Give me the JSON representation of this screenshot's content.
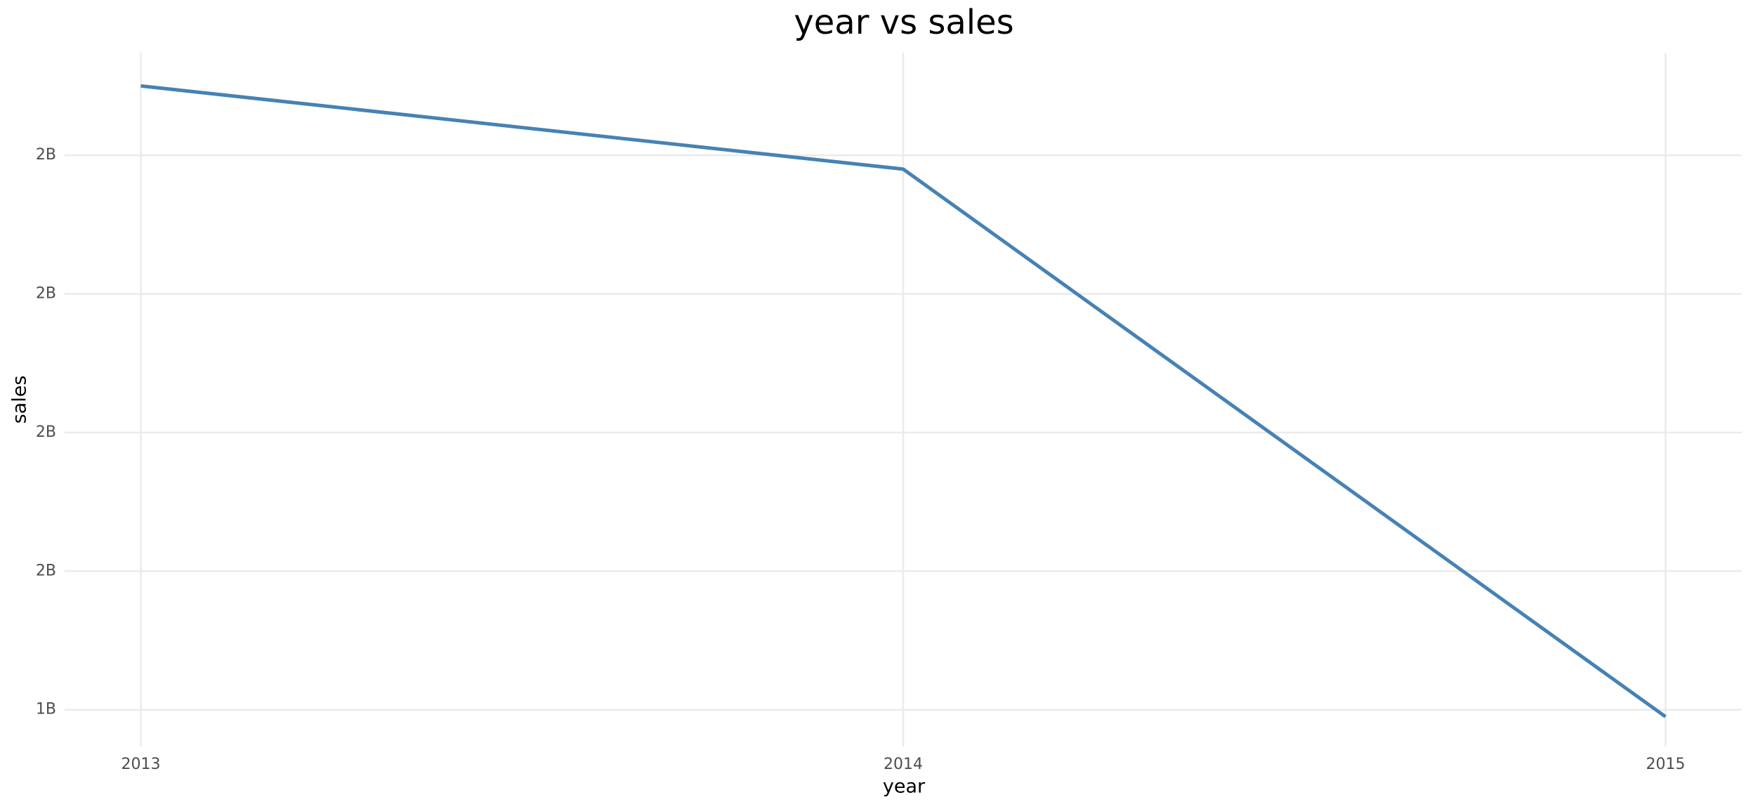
{
  "chart_data": {
    "type": "line",
    "title": "year vs sales",
    "x_label": "year",
    "y_label": "sales",
    "x": [
      2013,
      2014,
      2015
    ],
    "series": [
      {
        "name": "sales",
        "color": "#4682b4",
        "values": [
          2300000000,
          2180000000,
          1390000000
        ]
      }
    ],
    "xlim": [
      2012.9,
      2015.1
    ],
    "xticks": [
      2013,
      2014,
      2015
    ],
    "ylim": [
      1347000000,
      2348000000
    ],
    "yticks": [
      {
        "value": 1400000000,
        "label": "1B"
      },
      {
        "value": 1600000000,
        "label": "2B"
      },
      {
        "value": 1800000000,
        "label": "2B"
      },
      {
        "value": 2000000000,
        "label": "2B"
      },
      {
        "value": 2200000000,
        "label": "2B"
      }
    ],
    "grid": true
  }
}
